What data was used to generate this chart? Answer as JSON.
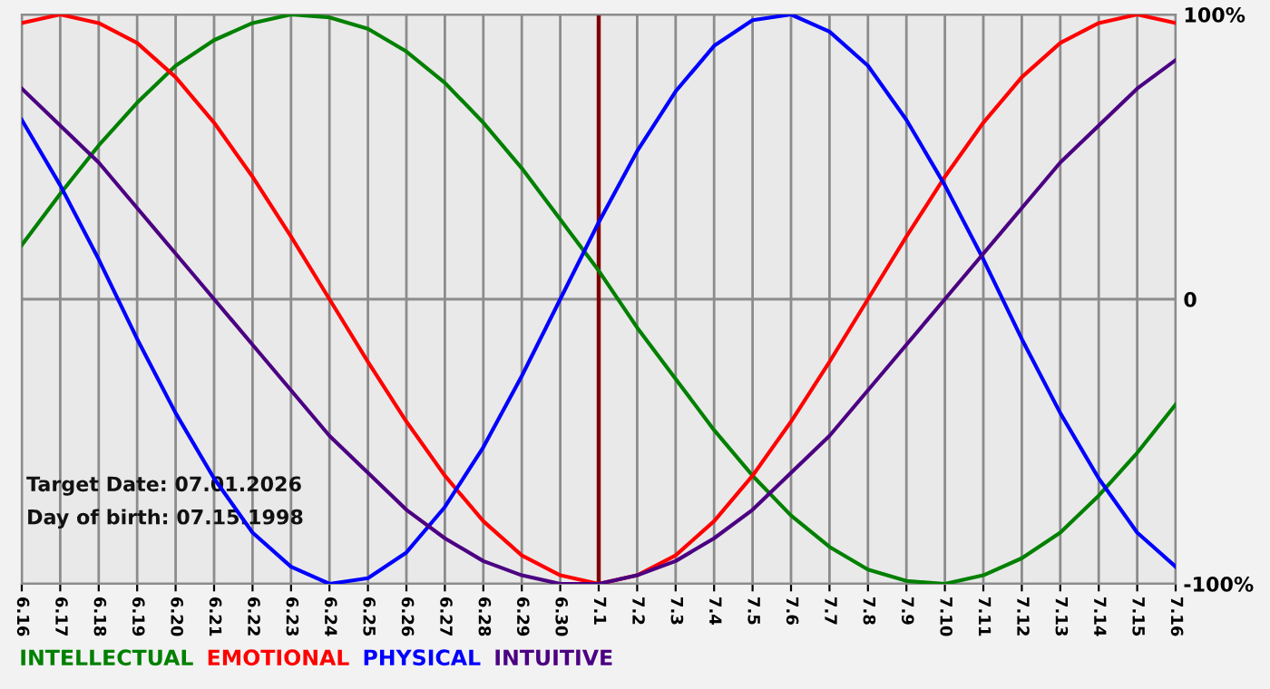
{
  "chart_data": {
    "type": "line",
    "categories": [
      "6.16",
      "6.17",
      "6.18",
      "6.19",
      "6.20",
      "6.21",
      "6.22",
      "6.23",
      "6.24",
      "6.25",
      "6.26",
      "6.27",
      "6.28",
      "6.29",
      "6.30",
      "7.1",
      "7.2",
      "7.3",
      "7.4",
      "7.5",
      "7.6",
      "7.7",
      "7.8",
      "7.9",
      "7.10",
      "7.11",
      "7.12",
      "7.13",
      "7.14",
      "7.15",
      "7.16"
    ],
    "series": [
      {
        "name": "INTELLECTUAL",
        "color": "#008000",
        "values": [
          19,
          37,
          54,
          69,
          82,
          91,
          97,
          100,
          99,
          95,
          87,
          76,
          62,
          46,
          28,
          10,
          -10,
          -28,
          -46,
          -62,
          -76,
          -87,
          -95,
          -99,
          -100,
          -97,
          -91,
          -82,
          -69,
          -54,
          -37
        ]
      },
      {
        "name": "EMOTIONAL",
        "color": "#ff0000",
        "values": [
          97,
          100,
          97,
          90,
          78,
          62,
          43,
          22,
          0,
          -22,
          -43,
          -62,
          -78,
          -90,
          -97,
          -100,
          -97,
          -90,
          -78,
          -62,
          -43,
          -22,
          0,
          22,
          43,
          62,
          78,
          90,
          97,
          100,
          97
        ]
      },
      {
        "name": "PHYSICAL",
        "color": "#0000ff",
        "values": [
          63,
          40,
          14,
          -14,
          -40,
          -63,
          -82,
          -94,
          -100,
          -98,
          -89,
          -73,
          -52,
          -27,
          0,
          27,
          52,
          73,
          89,
          98,
          100,
          94,
          82,
          63,
          40,
          14,
          -14,
          -40,
          -63,
          -82,
          -94
        ]
      },
      {
        "name": "INTUITIVE",
        "color": "#4b0082",
        "values": [
          74,
          61,
          48,
          32,
          16,
          0,
          -16,
          -32,
          -48,
          -61,
          -74,
          -84,
          -92,
          -97,
          -100,
          -100,
          -97,
          -92,
          -84,
          -74,
          -61,
          -48,
          -32,
          -16,
          0,
          16,
          32,
          48,
          61,
          74,
          84
        ]
      }
    ],
    "ylim": [
      -100,
      100
    ],
    "yticks": [
      {
        "value": -100,
        "label": "-100%"
      },
      0,
      {
        "value": 100,
        "label": "100%"
      }
    ],
    "ref_lines": [
      {
        "axis": "x",
        "value": "7.1",
        "color": "#800000"
      }
    ],
    "annotations": [
      "Target Date: 07.01.2026",
      "Day of birth: 07.15.1998"
    ],
    "grid": true,
    "legend": "bottom left",
    "marker": "none",
    "line_style": "solid"
  }
}
